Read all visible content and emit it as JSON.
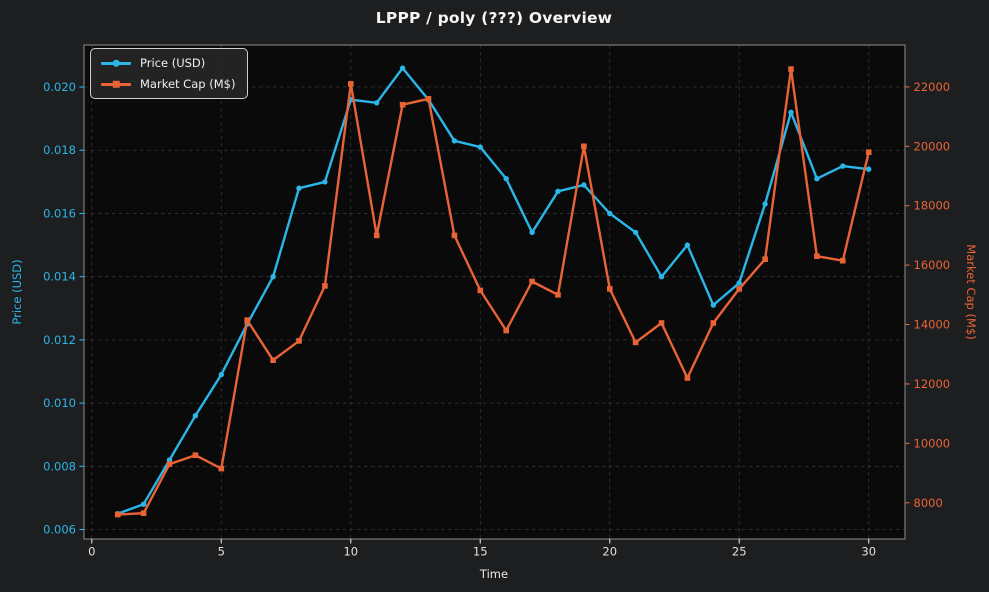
{
  "figure": {
    "background": "#1d1e1f",
    "plot_background": "#0a0a0b",
    "spine_color": "#8f8f8f",
    "grid_color": "#5a5a5a",
    "xtick_color": "#e0e0e0"
  },
  "chart_data": {
    "type": "line",
    "title": "LPPP / poly (???) Overview",
    "xlabel": "Time",
    "ylabel_left": "Price (USD)",
    "ylabel_right": "Market Cap (M$)",
    "x": [
      1,
      2,
      3,
      4,
      5,
      6,
      7,
      8,
      9,
      10,
      11,
      12,
      13,
      14,
      15,
      16,
      17,
      18,
      19,
      20,
      21,
      22,
      23,
      24,
      25,
      26,
      27,
      28,
      29,
      30
    ],
    "series": [
      {
        "name": "Price (USD)",
        "axis": "left",
        "color": "#2bb6e8",
        "marker": "circle",
        "values": [
          0.0065,
          0.0068,
          0.0082,
          0.0096,
          0.0109,
          0.0125,
          0.014,
          0.0168,
          0.017,
          0.0196,
          0.0195,
          0.0206,
          0.0196,
          0.0183,
          0.0181,
          0.0171,
          0.0154,
          0.0167,
          0.0169,
          0.016,
          0.0154,
          0.014,
          0.015,
          0.0131,
          0.0138,
          0.0163,
          0.0192,
          0.0171,
          0.0175,
          0.0174
        ]
      },
      {
        "name": "Market Cap (M$)",
        "axis": "right",
        "color": "#e96337",
        "marker": "square",
        "values": [
          7600,
          7650,
          9300,
          9600,
          9150,
          14150,
          12800,
          13450,
          15300,
          22100,
          17000,
          21400,
          21600,
          17000,
          15150,
          13800,
          15450,
          15000,
          20000,
          15200,
          13400,
          14050,
          12200,
          14050,
          15200,
          16200,
          22600,
          16300,
          16150,
          19800
        ]
      }
    ],
    "xticks": {
      "values": [
        0,
        5,
        10,
        15,
        20,
        25,
        30
      ],
      "labels": [
        "0",
        "5",
        "10",
        "15",
        "20",
        "25",
        "30"
      ]
    },
    "yticks_left": {
      "values": [
        0.006,
        0.008,
        0.01,
        0.012,
        0.014,
        0.016,
        0.018,
        0.02
      ],
      "labels": [
        "0.006",
        "0.008",
        "0.010",
        "0.012",
        "0.014",
        "0.016",
        "0.018",
        "0.020"
      ]
    },
    "yticks_right": {
      "values": [
        8000,
        10000,
        12000,
        14000,
        16000,
        18000,
        20000,
        22000
      ],
      "labels": [
        "8000",
        "10000",
        "12000",
        "14000",
        "16000",
        "18000",
        "20000",
        "22000"
      ]
    },
    "xlim": [
      -0.3,
      31.4
    ],
    "ylim_left": [
      0.0057,
      0.02133
    ],
    "ylim_right": [
      6780,
      23410
    ],
    "grid": true,
    "grid_style": "dashed",
    "legend_position": "top-left"
  }
}
